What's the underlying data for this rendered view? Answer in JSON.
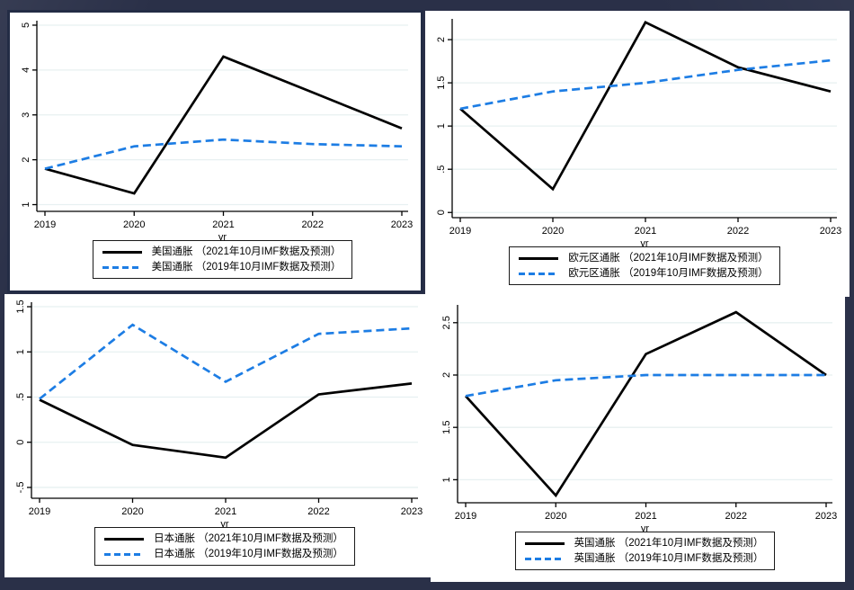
{
  "page": {
    "background": "#2a3048",
    "panel_background": "#ffffff",
    "panel_border": "#232c45"
  },
  "colors": {
    "axis": "#000000",
    "grid": "#e7f0f1",
    "legend_border": "#1a1a1a",
    "actual_2021": "#000000",
    "forecast_2019": "#1d7de4"
  },
  "chart_data": [
    {
      "id": "us-inflation",
      "type": "line",
      "title": "",
      "xlabel": "yr",
      "x": [
        2019,
        2020,
        2021,
        2022,
        2023
      ],
      "xtick_labels": [
        "2019",
        "2020",
        "2021",
        "2022",
        "2023"
      ],
      "ylim": [
        0.85,
        5.1
      ],
      "yticks": [
        1,
        2,
        3,
        4,
        5
      ],
      "ytick_labels": [
        "1",
        "2",
        "3",
        "4",
        "5"
      ],
      "grid": true,
      "legend_position": "bottom",
      "series": [
        {
          "name": "美国通胀 （2021年10月IMF数据及预测）",
          "style": "solid",
          "color_key": "actual_2021",
          "values": [
            1.8,
            1.25,
            4.3,
            3.5,
            2.7
          ]
        },
        {
          "name": "美国通胀 （2019年10月IMF数据及预测）",
          "style": "dashed",
          "color_key": "forecast_2019",
          "values": [
            1.8,
            2.3,
            2.45,
            2.35,
            2.3
          ]
        }
      ]
    },
    {
      "id": "eurozone-inflation",
      "type": "line",
      "title": "",
      "xlabel": "yr",
      "x": [
        2019,
        2020,
        2021,
        2022,
        2023
      ],
      "xtick_labels": [
        "2019",
        "2020",
        "2021",
        "2022",
        "2023"
      ],
      "ylim": [
        -0.06,
        2.24
      ],
      "yticks": [
        0,
        0.5,
        1,
        1.5,
        2
      ],
      "ytick_labels": [
        "0",
        ".5",
        "1",
        "1.5",
        "2"
      ],
      "grid": true,
      "legend_position": "bottom",
      "series": [
        {
          "name": "欧元区通胀 （2021年10月IMF数据及预测）",
          "style": "solid",
          "color_key": "actual_2021",
          "values": [
            1.2,
            0.27,
            2.2,
            1.68,
            1.4
          ]
        },
        {
          "name": "欧元区通胀 （2019年10月IMF数据及预测）",
          "style": "dashed",
          "color_key": "forecast_2019",
          "values": [
            1.2,
            1.4,
            1.5,
            1.65,
            1.76
          ]
        }
      ]
    },
    {
      "id": "japan-inflation",
      "type": "line",
      "title": "",
      "xlabel": "yr",
      "x": [
        2019,
        2020,
        2021,
        2022,
        2023
      ],
      "xtick_labels": [
        "2019",
        "2020",
        "2021",
        "2022",
        "2023"
      ],
      "ylim": [
        -0.62,
        1.55
      ],
      "yticks": [
        -0.5,
        0,
        0.5,
        1,
        1.5
      ],
      "ytick_labels": [
        "-.5",
        "0",
        ".5",
        "1",
        "1.5"
      ],
      "grid": true,
      "legend_position": "bottom",
      "series": [
        {
          "name": "日本通胀 （2021年10月IMF数据及预测）",
          "style": "solid",
          "color_key": "actual_2021",
          "values": [
            0.47,
            -0.03,
            -0.17,
            0.53,
            0.65
          ]
        },
        {
          "name": "日本通胀 （2019年10月IMF数据及预测）",
          "style": "dashed",
          "color_key": "forecast_2019",
          "values": [
            0.48,
            1.3,
            0.67,
            1.2,
            1.26
          ]
        }
      ]
    },
    {
      "id": "uk-inflation",
      "type": "line",
      "title": "",
      "xlabel": "yr",
      "x": [
        2019,
        2020,
        2021,
        2022,
        2023
      ],
      "xtick_labels": [
        "2019",
        "2020",
        "2021",
        "2022",
        "2023"
      ],
      "ylim": [
        0.78,
        2.67
      ],
      "yticks": [
        1,
        1.5,
        2,
        2.5
      ],
      "ytick_labels": [
        "1",
        "1.5",
        "2",
        "2.5"
      ],
      "grid": true,
      "legend_position": "bottom",
      "series": [
        {
          "name": "英国通胀 （2021年10月IMF数据及预测）",
          "style": "solid",
          "color_key": "actual_2021",
          "values": [
            1.8,
            0.85,
            2.2,
            2.6,
            2.0
          ]
        },
        {
          "name": "英国通胀 （2019年10月IMF数据及预测）",
          "style": "dashed",
          "color_key": "forecast_2019",
          "values": [
            1.8,
            1.95,
            2.0,
            2.0,
            2.0
          ]
        }
      ]
    }
  ]
}
